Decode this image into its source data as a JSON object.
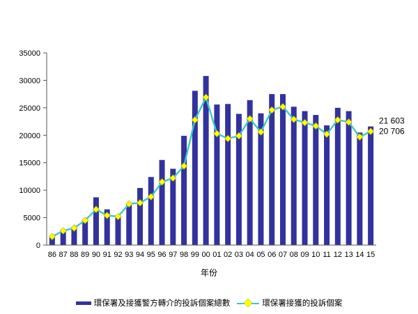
{
  "chart_data": {
    "type": "bar+line",
    "title": "",
    "xlabel": "年份",
    "ylim": [
      0,
      35000
    ],
    "ytick_step": 5000,
    "yticks": [
      0,
      5000,
      10000,
      15000,
      20000,
      25000,
      30000,
      35000
    ],
    "grid": false,
    "legend_position": "bottom",
    "categories": [
      "86",
      "87",
      "88",
      "89",
      "90",
      "91",
      "92",
      "93",
      "94",
      "95",
      "96",
      "97",
      "98",
      "99",
      "00",
      "01",
      "02",
      "03",
      "04",
      "05",
      "06",
      "07",
      "08",
      "09",
      "10",
      "11",
      "12",
      "13",
      "14",
      "15"
    ],
    "series": [
      {
        "name": "環保署及接獲警方轉介的投訴個案總數",
        "type": "bar",
        "color": "#32329E",
        "values": [
          1600,
          2600,
          3100,
          4500,
          8700,
          6500,
          5200,
          7600,
          10400,
          12400,
          15500,
          13900,
          19900,
          28100,
          30800,
          25600,
          25700,
          23900,
          26400,
          24000,
          27500,
          27500,
          25200,
          24400,
          23700,
          21800,
          25000,
          24400,
          20500,
          21603
        ]
      },
      {
        "name": "環保署接獲的投訴個案",
        "type": "line",
        "color": "#3BC6CC",
        "marker": "diamond",
        "marker_color": "#FFFF00",
        "values": [
          1550,
          2600,
          3100,
          4500,
          6500,
          5400,
          5200,
          7500,
          7700,
          8800,
          11500,
          12200,
          14400,
          22800,
          26900,
          20300,
          19400,
          19900,
          23000,
          20600,
          24600,
          25200,
          22900,
          22300,
          21700,
          20200,
          22800,
          22400,
          19700,
          20706
        ]
      }
    ],
    "annotations": [
      {
        "text": "21 603",
        "category": "15",
        "series": 0
      },
      {
        "text": "20 706",
        "category": "15",
        "series": 1
      }
    ]
  }
}
